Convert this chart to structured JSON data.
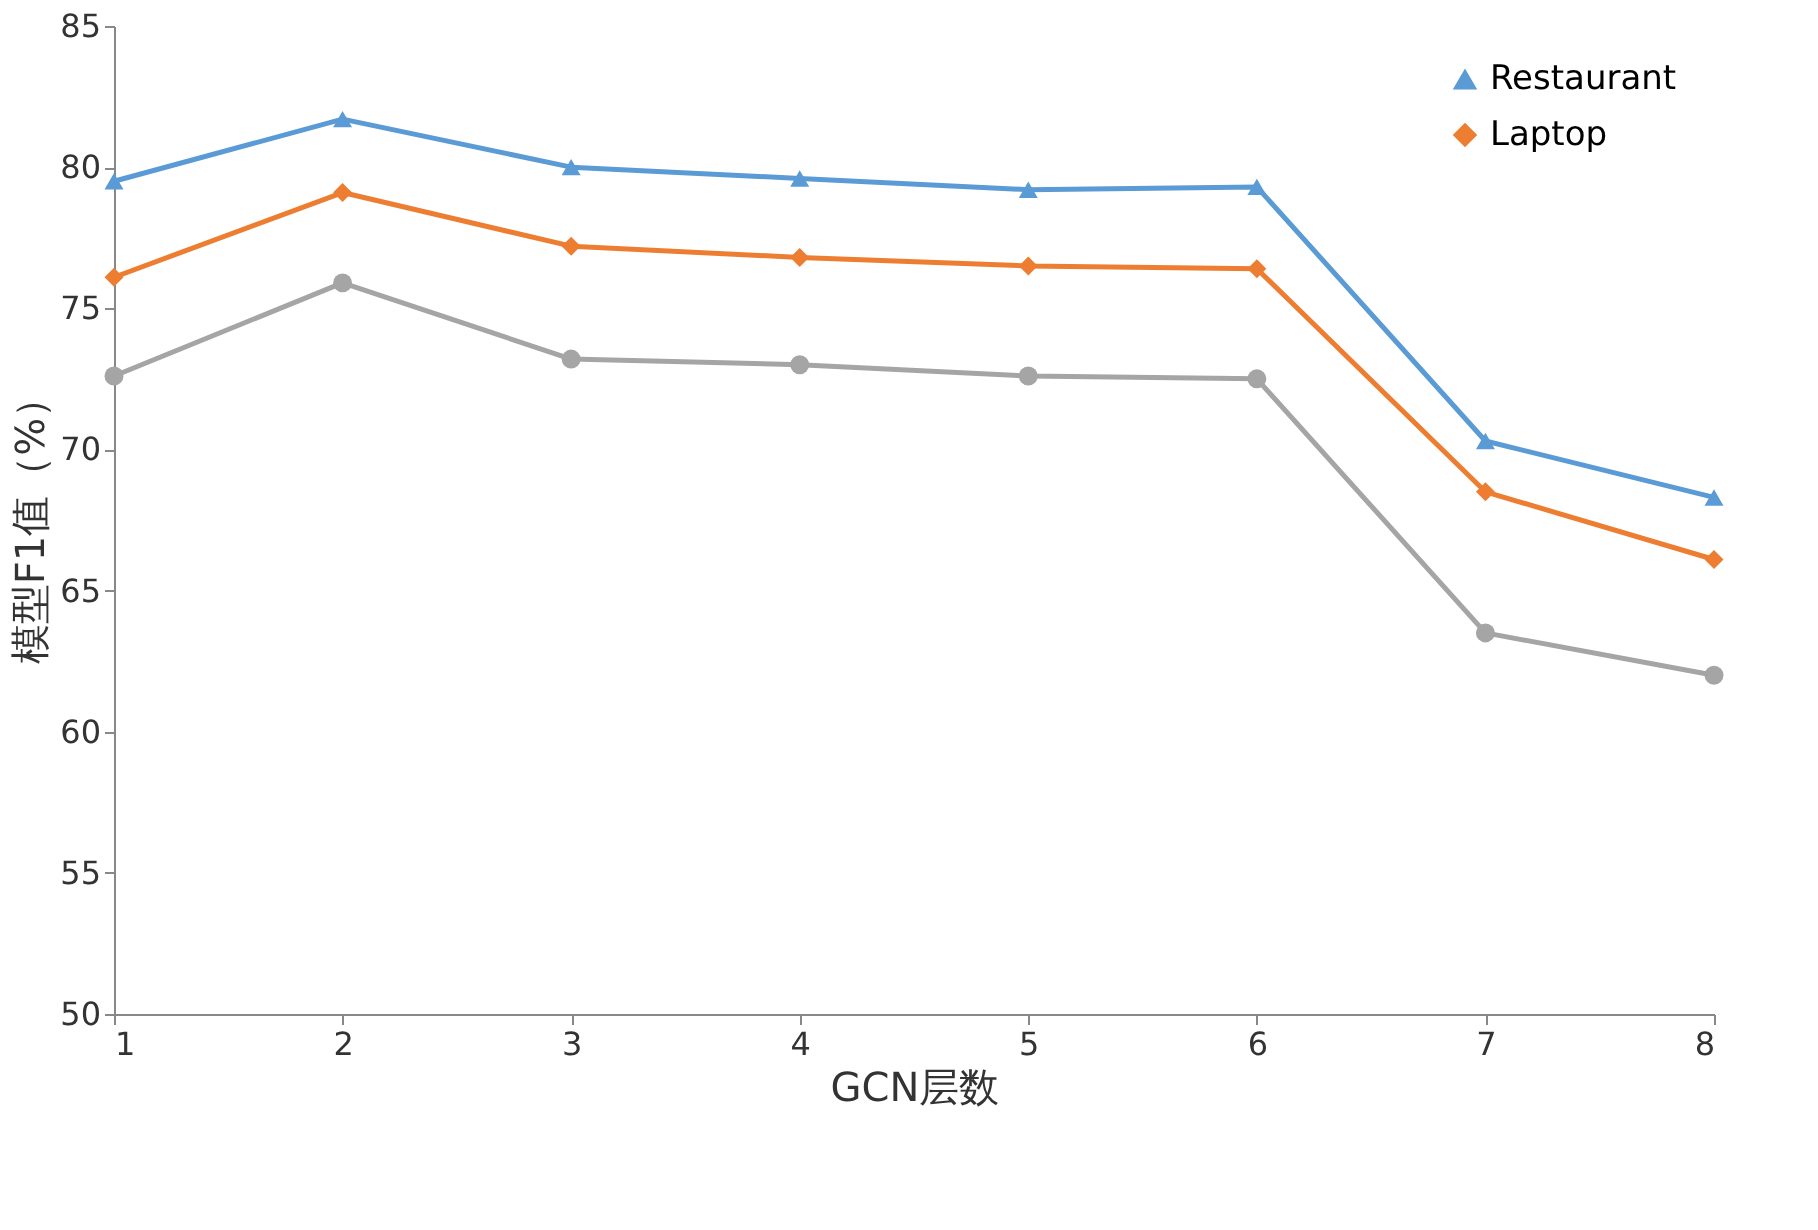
{
  "chart_data": {
    "type": "line",
    "xlabel": "GCN层数",
    "ylabel": "模型F1值（%）",
    "x": [
      1,
      2,
      3,
      4,
      5,
      6,
      7,
      8
    ],
    "xlim": [
      1,
      8
    ],
    "xticks": [
      1,
      2,
      3,
      4,
      5,
      6,
      7,
      8
    ],
    "ylim": [
      50,
      85
    ],
    "yticks": [
      50,
      55,
      60,
      65,
      70,
      75,
      80,
      85
    ],
    "grid": false,
    "legend": "top right",
    "line_style": "solid",
    "series": [
      {
        "name": "Restaurant",
        "color": "#5b9bd5",
        "marker": "triangle",
        "values": [
          79.5,
          81.7,
          80.0,
          79.6,
          79.2,
          79.3,
          70.3,
          68.3
        ]
      },
      {
        "name": "Laptop",
        "color": "#ed7d31",
        "marker": "diamond",
        "values": [
          76.1,
          79.1,
          77.2,
          76.8,
          76.5,
          76.4,
          68.5,
          66.1
        ]
      },
      {
        "color": "#a5a5a5",
        "marker": "circle",
        "values": [
          72.6,
          75.9,
          73.2,
          73.0,
          72.6,
          72.5,
          63.5,
          62.0
        ]
      }
    ]
  }
}
